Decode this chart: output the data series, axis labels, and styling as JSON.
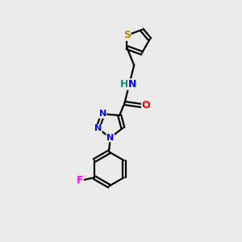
{
  "bg_color": "#ebebeb",
  "bond_color": "#000000",
  "atom_colors": {
    "S": "#b8860b",
    "N": "#0000ee",
    "O": "#ff0000",
    "F": "#ff00ff",
    "HN": "#008888",
    "C": "#000000"
  },
  "figsize": [
    3.0,
    3.0
  ],
  "dpi": 100
}
